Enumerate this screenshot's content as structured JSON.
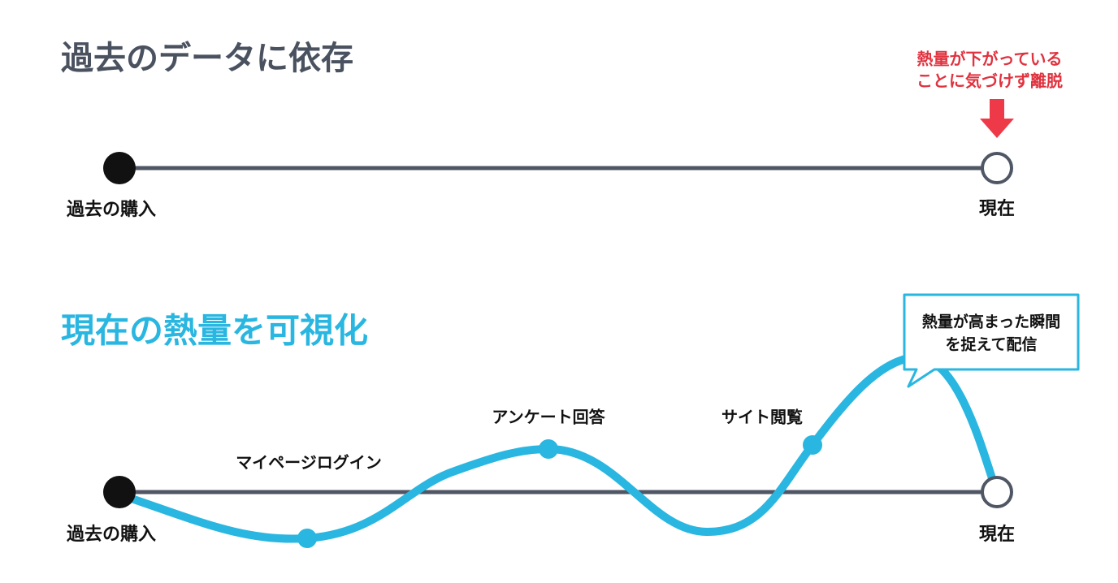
{
  "top": {
    "title": "過去のデータに依存",
    "start_label": "過去の購入",
    "end_label": "現在",
    "warning": [
      "熱量が下がっている",
      "ことに気づけず離脱"
    ]
  },
  "bottom": {
    "title": "現在の熱量を可視化",
    "start_label": "過去の購入",
    "end_label": "現在",
    "events": [
      "マイページログイン",
      "アンケート回答",
      "サイト閲覧"
    ],
    "callout": [
      "熱量が高まった瞬間",
      "を捉えて配信"
    ]
  }
}
